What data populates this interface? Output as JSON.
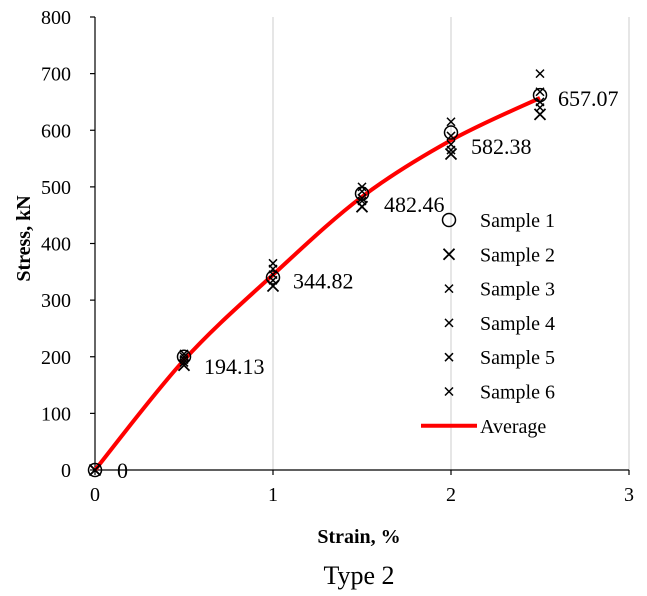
{
  "chart_data": {
    "type": "scatter",
    "xlabel": "Strain, %",
    "ylabel": "Stress, kN",
    "caption": "Type 2",
    "xlim": [
      0,
      3
    ],
    "ylim": [
      0,
      800
    ],
    "xticks": [
      "0",
      "1",
      "2",
      "3"
    ],
    "yticks": [
      "0",
      "100",
      "200",
      "300",
      "400",
      "500",
      "600",
      "700",
      "800"
    ],
    "grid": "vertical",
    "legend_position": "right",
    "x": [
      0,
      0.5,
      1,
      1.5,
      2,
      2.5
    ],
    "series": [
      {
        "name": "Sample 1",
        "marker": "circle",
        "values": [
          0,
          200,
          340,
          488,
          596,
          662
        ]
      },
      {
        "name": "Sample 2",
        "marker": "x",
        "values": [
          0,
          185,
          325,
          465,
          558,
          628
        ]
      },
      {
        "name": "Sample 3",
        "marker": "x",
        "values": [
          0,
          190,
          335,
          475,
          565,
          640
        ]
      },
      {
        "name": "Sample 4",
        "marker": "x",
        "values": [
          0,
          195,
          345,
          480,
          575,
          650
        ]
      },
      {
        "name": "Sample 5",
        "marker": "x",
        "values": [
          0,
          200,
          355,
          492,
          590,
          668
        ]
      },
      {
        "name": "Sample 6",
        "marker": "x",
        "values": [
          0,
          205,
          365,
          500,
          615,
          700
        ]
      },
      {
        "name": "Average",
        "marker": "line",
        "color": "#ff0000",
        "values": [
          0,
          194.13,
          344.82,
          482.46,
          582.38,
          657.07
        ]
      }
    ],
    "data_labels": [
      "0",
      "194.13",
      "344.82",
      "482.46",
      "582.38",
      "657.07"
    ]
  }
}
